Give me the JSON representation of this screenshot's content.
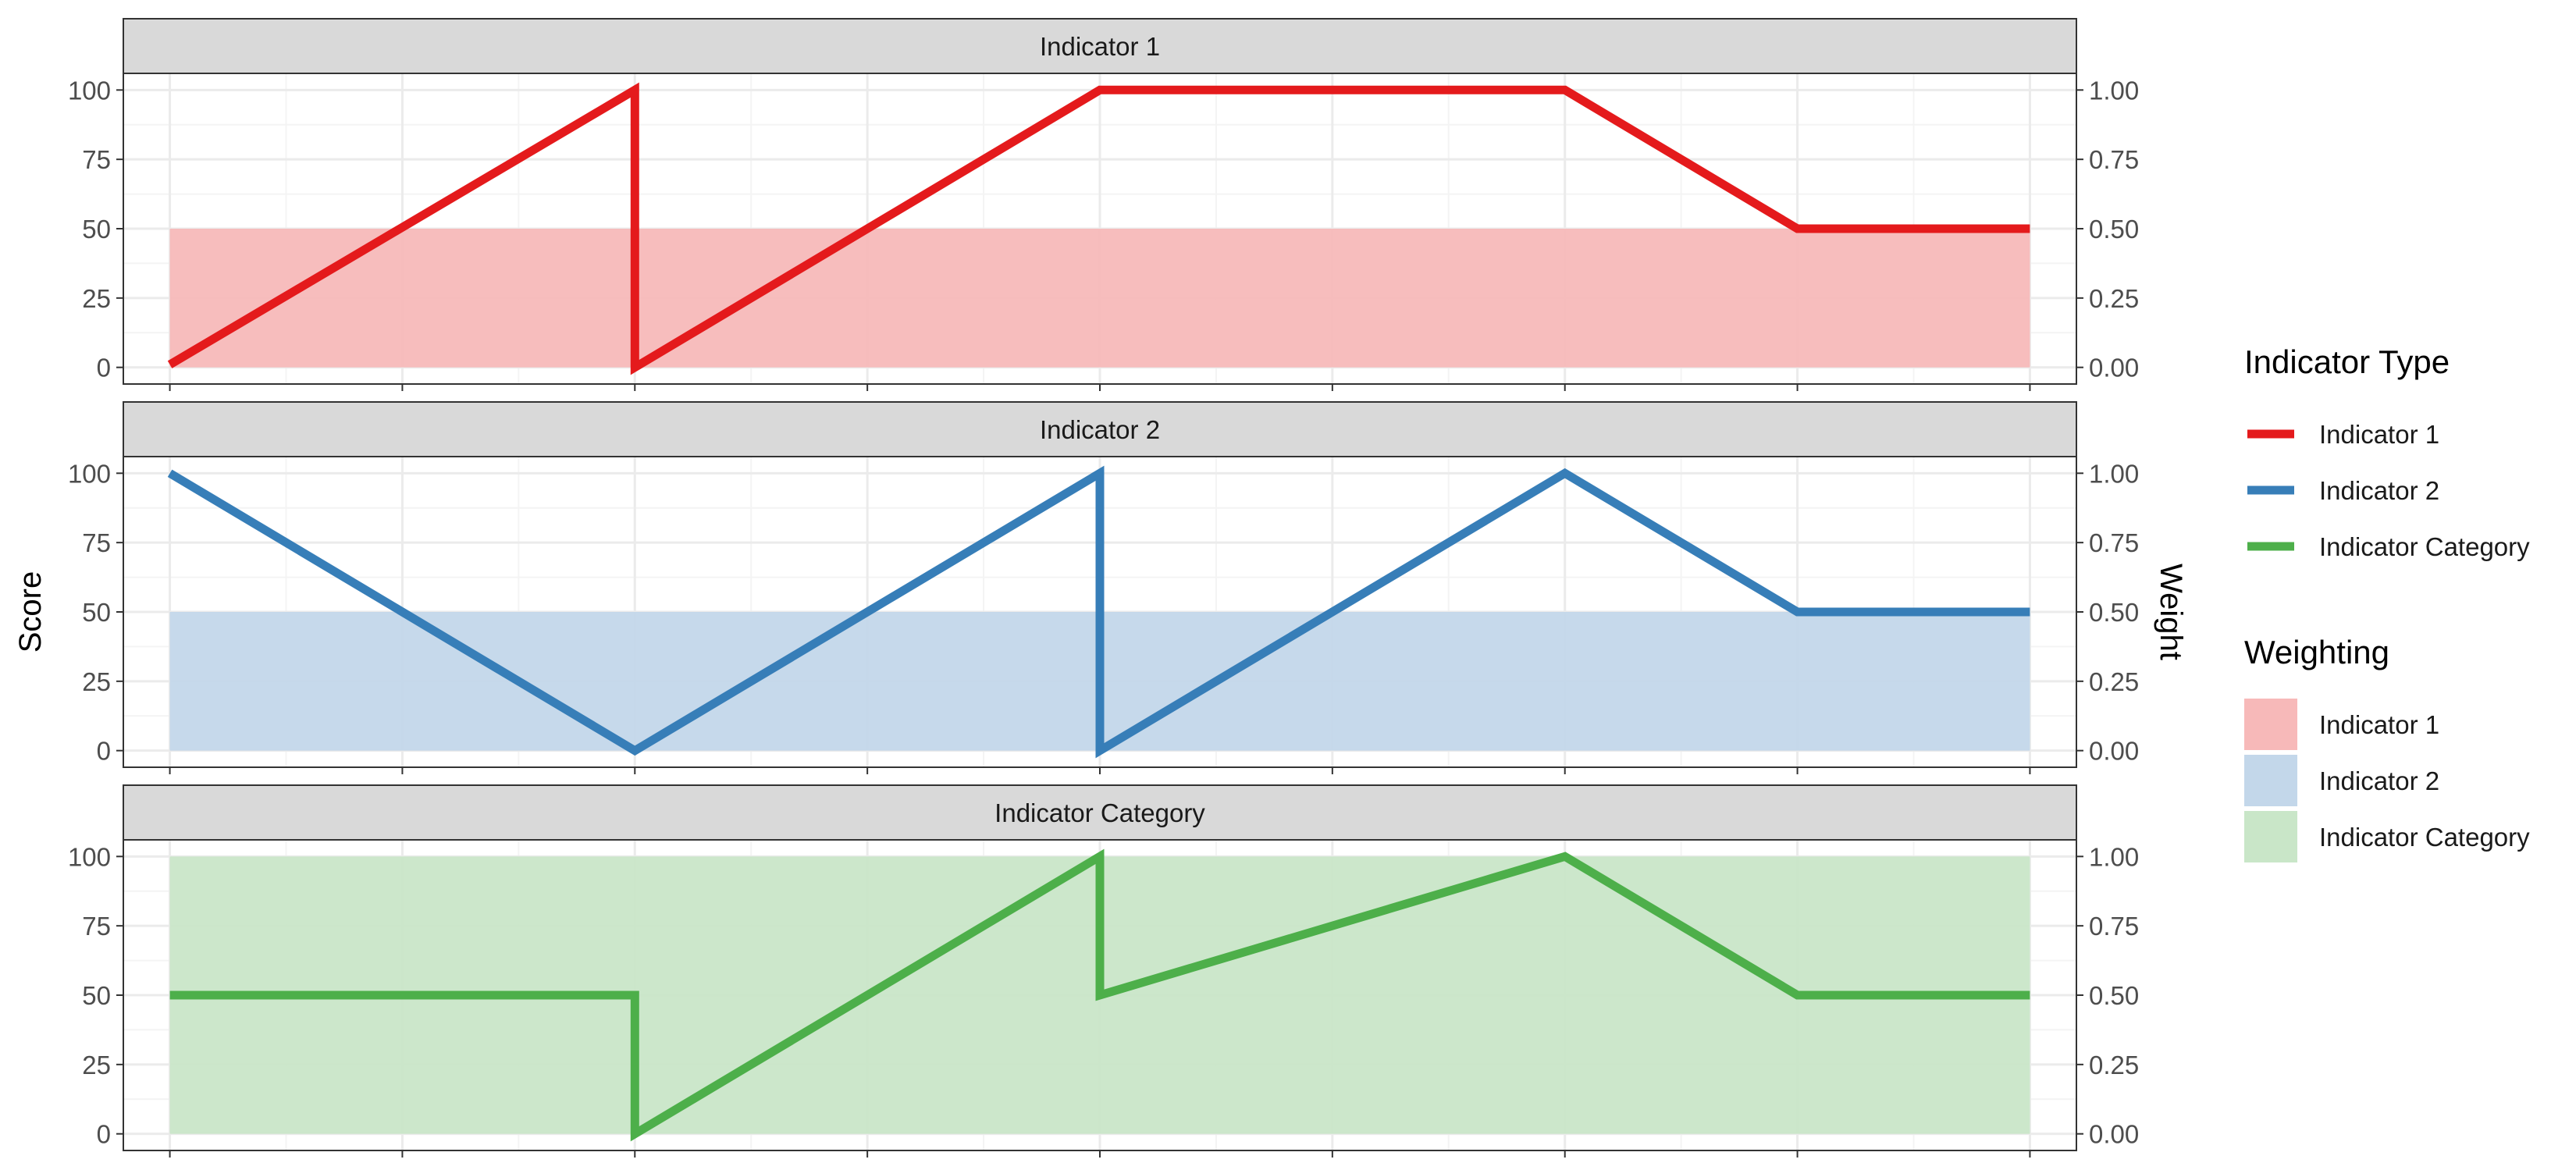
{
  "chart_data": {
    "type": "line",
    "ylabel": "Score",
    "y2label": "Weight",
    "ylim": [
      0,
      100
    ],
    "y2lim": [
      0,
      1
    ],
    "yticks": [
      0,
      25,
      50,
      75,
      100
    ],
    "yticks_labels": [
      "0",
      "25",
      "50",
      "75",
      "100"
    ],
    "y2ticks_labels": [
      "0.00",
      "0.25",
      "0.50",
      "0.75",
      "1.00"
    ],
    "x": [
      1,
      2,
      3,
      4,
      5,
      6,
      7,
      8,
      9
    ],
    "xlim": [
      0.8,
      9.2
    ],
    "grid": true,
    "panels": [
      {
        "title": "Indicator 1",
        "color": "#e41a1c",
        "fill": "#f7b9b9",
        "score": [
          [
            1,
            1
          ],
          [
            3,
            100
          ],
          [
            3,
            0
          ],
          [
            5,
            100
          ],
          [
            7,
            100
          ],
          [
            8,
            50
          ],
          [
            9,
            50
          ]
        ],
        "weight": 0.5
      },
      {
        "title": "Indicator 2",
        "color": "#377eb8",
        "fill": "#c3d7ea",
        "score": [
          [
            1,
            100
          ],
          [
            3,
            0
          ],
          [
            5,
            100
          ],
          [
            5,
            0
          ],
          [
            7,
            100
          ],
          [
            8,
            50
          ],
          [
            9,
            50
          ]
        ],
        "weight": 0.5
      },
      {
        "title": "Indicator Category",
        "color": "#4daf4a",
        "fill": "#c9e6c8",
        "score": [
          [
            1,
            50
          ],
          [
            3,
            50
          ],
          [
            3,
            0
          ],
          [
            5,
            100
          ],
          [
            5,
            50
          ],
          [
            7,
            100
          ],
          [
            8,
            50
          ],
          [
            9,
            50
          ]
        ],
        "weight": 1.0
      }
    ],
    "legend": {
      "placement": "right",
      "groups": [
        {
          "title": "Indicator Type",
          "kind": "line",
          "items": [
            {
              "label": "Indicator 1",
              "color": "#e41a1c"
            },
            {
              "label": "Indicator 2",
              "color": "#377eb8"
            },
            {
              "label": "Indicator Category",
              "color": "#4daf4a"
            }
          ]
        },
        {
          "title": "Weighting",
          "kind": "fill",
          "items": [
            {
              "label": "Indicator 1",
              "color": "#f7b9b9"
            },
            {
              "label": "Indicator 2",
              "color": "#c3d7ea"
            },
            {
              "label": "Indicator Category",
              "color": "#c9e6c8"
            }
          ]
        }
      ]
    }
  }
}
